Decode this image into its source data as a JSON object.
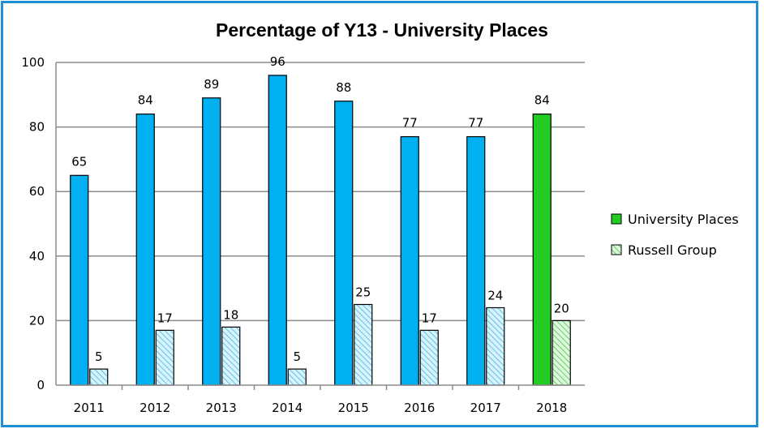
{
  "chart_data": {
    "type": "bar",
    "title": "Percentage of Y13 - University Places",
    "categories": [
      "2011",
      "2012",
      "2013",
      "2014",
      "2015",
      "2016",
      "2017",
      "2018"
    ],
    "series": [
      {
        "name": "University Places",
        "values": [
          65,
          84,
          89,
          96,
          88,
          77,
          77,
          84
        ],
        "color": "#00b0f0",
        "highlight_color": "#22cc22"
      },
      {
        "name": "Russell Group",
        "values": [
          5,
          17,
          18,
          5,
          25,
          17,
          24,
          20
        ],
        "color": "#bfe9f7",
        "highlight_color": "#c9f0c9"
      }
    ],
    "ylim": [
      0,
      100
    ],
    "yticks": [
      0,
      20,
      40,
      60,
      80,
      100
    ],
    "grid": true,
    "legend": "right",
    "highlight_category": "2018",
    "xlabel": "",
    "ylabel": ""
  }
}
